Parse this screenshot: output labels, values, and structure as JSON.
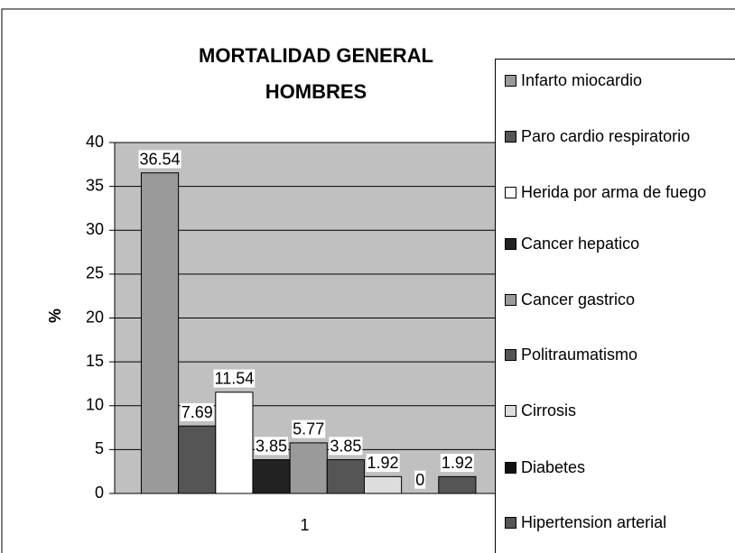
{
  "chart_data": {
    "type": "bar",
    "title": "MORTALIDAD GENERAL HOMBRES",
    "y_label": "%",
    "categories": [
      "1"
    ],
    "series": [
      {
        "name": "Infarto miocardio",
        "color": "#9a9a9a",
        "values": [
          36.54
        ]
      },
      {
        "name": "Paro cardio respiratorio",
        "color": "#555555",
        "values": [
          7.69
        ]
      },
      {
        "name": "Herida por arma de fuego",
        "color": "#ffffff",
        "values": [
          11.54
        ]
      },
      {
        "name": "Cancer hepatico",
        "color": "#222222",
        "values": [
          3.85
        ]
      },
      {
        "name": "Cancer gastrico",
        "color": "#9a9a9a",
        "values": [
          5.77
        ]
      },
      {
        "name": "Politraumatismo",
        "color": "#555555",
        "values": [
          3.85
        ]
      },
      {
        "name": "Cirrosis",
        "color": "#dddddd",
        "values": [
          1.92
        ]
      },
      {
        "name": "Diabetes",
        "color": "#111111",
        "values": [
          0
        ]
      },
      {
        "name": "Hipertension arterial",
        "color": "#555555",
        "values": [
          1.92
        ]
      }
    ],
    "ylim": [
      0,
      40
    ],
    "yticks": [
      0,
      5,
      10,
      15,
      20,
      25,
      30,
      35,
      40
    ],
    "grid": true,
    "legend": "right",
    "plot_background": "#c0c0c0"
  }
}
